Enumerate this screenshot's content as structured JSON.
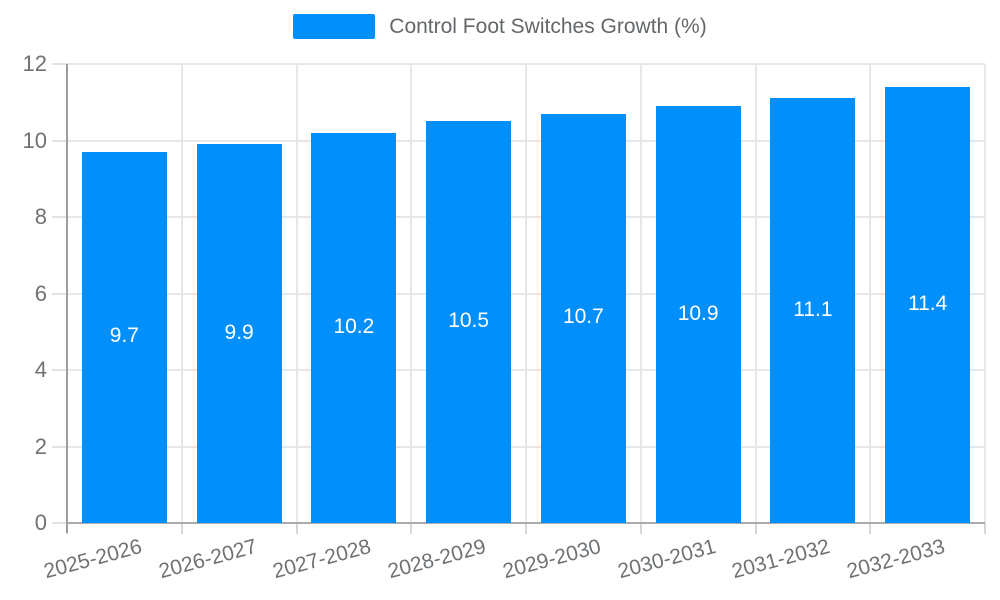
{
  "chart_data": {
    "type": "bar",
    "title": "",
    "legend": {
      "label": "Control Foot Switches Growth (%)",
      "position": "top"
    },
    "categories": [
      "2025-2026",
      "2026-2027",
      "2027-2028",
      "2028-2029",
      "2029-2030",
      "2030-2031",
      "2031-2032",
      "2032-2033"
    ],
    "values": [
      9.7,
      9.9,
      10.2,
      10.5,
      10.7,
      10.9,
      11.1,
      11.4
    ],
    "bar_value_labels": [
      "9.7",
      "9.9",
      "10.2",
      "10.5",
      "10.7",
      "10.9",
      "11.1",
      "11.4"
    ],
    "xlabel": "",
    "ylabel": "",
    "ylim": [
      0,
      12
    ],
    "yticks": [
      0,
      2,
      4,
      6,
      8,
      10,
      12
    ],
    "grid": true,
    "bar_color": "#008FFB",
    "bar_label_color": "#FFFFFF"
  }
}
